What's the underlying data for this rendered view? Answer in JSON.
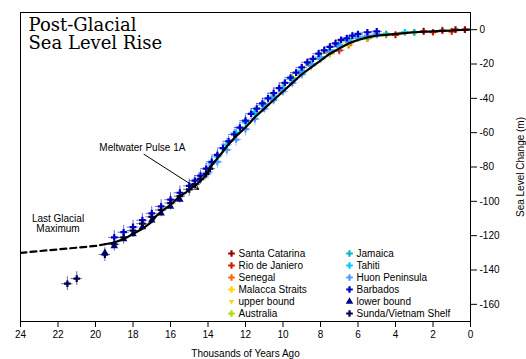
{
  "chart_data": {
    "type": "scatter",
    "title": "Post-Glacial\nSea Level Rise",
    "xlabel": "Thousands of Years Ago",
    "ylabel": "Sea Level Change (m)",
    "xlim": [
      24,
      0
    ],
    "ylim": [
      -170,
      10
    ],
    "xticks": [
      24,
      22,
      20,
      18,
      16,
      14,
      12,
      10,
      8,
      6,
      4,
      2,
      0
    ],
    "yticks": [
      0,
      -20,
      -40,
      -60,
      -80,
      -100,
      -120,
      -140,
      -160
    ],
    "grid": false,
    "legend": "lower right",
    "series": [
      {
        "name": "Santa Catarina",
        "color": "#990000",
        "marker": "plus",
        "x": [
          2.5,
          1.5,
          0.8,
          0.3
        ],
        "values": [
          -1,
          -0.5,
          0,
          0
        ],
        "xerr": [
          0.2,
          0.2,
          0.2,
          0.2
        ],
        "yerr": [
          2,
          2,
          1,
          1
        ]
      },
      {
        "name": "Rio de Janiero",
        "color": "#CC2200",
        "marker": "plus",
        "x": [
          7.0,
          5.5,
          4.0,
          2.0,
          1.0
        ],
        "values": [
          -12,
          -5,
          -3,
          -1.5,
          -1
        ],
        "xerr": [
          0.3,
          0.3,
          0.3,
          0.3,
          0.3
        ],
        "yerr": [
          3,
          2,
          2,
          1.5,
          1
        ]
      },
      {
        "name": "Senegal",
        "color": "#FF6600",
        "marker": "plus",
        "x": [
          8.5,
          7.5,
          6.5,
          5.5,
          4.5,
          3.0
        ],
        "values": [
          -20,
          -14,
          -9,
          -5,
          -3,
          -1.5
        ],
        "xerr": [
          0.3,
          0.3,
          0.3,
          0.3,
          0.3,
          0.3
        ],
        "yerr": [
          3,
          3,
          2,
          2,
          2,
          1.5
        ]
      },
      {
        "name": "Malacca Straits",
        "color": "#FFD700",
        "marker": "plus",
        "x": [
          9.5,
          9.0,
          8.5,
          8.0,
          7.5,
          7.0,
          6.5,
          6.0,
          5.5,
          4.5,
          3.5
        ],
        "values": [
          -28,
          -24,
          -21,
          -17,
          -13,
          -10,
          -7,
          -5,
          -4,
          -2.5,
          -1.5
        ],
        "xerr": [
          0.3,
          0.3,
          0.3,
          0.3,
          0.3,
          0.3,
          0.3,
          0.3,
          0.3,
          0.3,
          0.3
        ],
        "yerr": [
          3,
          3,
          3,
          3,
          2,
          2,
          2,
          2,
          2,
          1.5,
          1.5
        ]
      },
      {
        "name": "upper bound",
        "color": "#FFD700",
        "marker": "triangle-down",
        "x": [
          10.5,
          10.0,
          9.5,
          9.0,
          8.5,
          8.0,
          7.5,
          7.0,
          6.5,
          6.0
        ],
        "values": [
          -38,
          -33,
          -28,
          -23,
          -18,
          -14,
          -10,
          -7,
          -5,
          -3
        ],
        "xerr": [
          0,
          0,
          0,
          0,
          0,
          0,
          0,
          0,
          0,
          0
        ],
        "yerr": [
          0,
          0,
          0,
          0,
          0,
          0,
          0,
          0,
          0,
          0
        ]
      },
      {
        "name": "Australia",
        "color": "#AADD00",
        "marker": "plus",
        "x": [
          9.5,
          8.5,
          7.5,
          6.5,
          5.5
        ],
        "values": [
          -28,
          -21,
          -14,
          -8,
          -5
        ],
        "xerr": [
          0.3,
          0.3,
          0.3,
          0.3,
          0.3
        ],
        "yerr": [
          3,
          3,
          2,
          2,
          2
        ]
      },
      {
        "name": "Jamaica",
        "color": "#00BBBB",
        "marker": "plus",
        "x": [
          11.5,
          11.0,
          10.5,
          10.0,
          9.5,
          9.0,
          8.5,
          8.0,
          7.5,
          7.0,
          6.5,
          5.5,
          4.5,
          3.0
        ],
        "values": [
          -48,
          -44,
          -39,
          -34,
          -29,
          -24,
          -20,
          -16,
          -12,
          -9,
          -6,
          -4,
          -2.5,
          -1.5
        ],
        "xerr": [
          0.3,
          0.3,
          0.3,
          0.3,
          0.3,
          0.3,
          0.3,
          0.3,
          0.3,
          0.3,
          0.3,
          0.3,
          0.3,
          0.3
        ],
        "yerr": [
          3,
          3,
          3,
          3,
          3,
          3,
          3,
          2,
          2,
          2,
          2,
          2,
          1.5,
          1.5
        ]
      },
      {
        "name": "Tahiti",
        "color": "#00CCFF",
        "marker": "plus",
        "x": [
          13.8,
          13.5,
          13.0,
          12.5,
          12.0,
          11.5,
          11.0,
          10.5,
          10.0,
          9.5,
          9.0,
          8.5,
          8.0,
          7.5,
          7.0,
          6.5,
          6.0,
          5.0,
          3.5
        ],
        "values": [
          -78,
          -74,
          -67,
          -60,
          -54,
          -49,
          -44,
          -39,
          -34,
          -29,
          -24,
          -20,
          -16,
          -12,
          -9,
          -6,
          -4,
          -3,
          -1.5
        ],
        "xerr": [
          0.3,
          0.3,
          0.3,
          0.3,
          0.3,
          0.3,
          0.3,
          0.3,
          0.3,
          0.3,
          0.3,
          0.3,
          0.3,
          0.3,
          0.3,
          0.3,
          0.3,
          0.3,
          0.3
        ],
        "yerr": [
          4,
          4,
          4,
          4,
          4,
          3,
          3,
          3,
          3,
          3,
          3,
          3,
          2,
          2,
          2,
          2,
          2,
          2,
          1.5
        ]
      },
      {
        "name": "Huon Peninsula",
        "color": "#5599FF",
        "marker": "plus",
        "x": [
          14.5,
          14.0,
          13.5,
          13.0,
          12.5,
          12.0,
          11.5,
          11.0,
          10.5,
          10.0,
          9.5,
          9.0,
          8.5,
          8.0,
          7.5,
          7.0,
          6.5,
          6.0,
          5.5,
          5.0
        ],
        "values": [
          -87,
          -83,
          -77,
          -70,
          -64,
          -58,
          -52,
          -46,
          -41,
          -36,
          -31,
          -26,
          -21,
          -17,
          -13,
          -10,
          -7,
          -5,
          -3.5,
          -2.5
        ],
        "xerr": [
          0.3,
          0.3,
          0.3,
          0.3,
          0.3,
          0.3,
          0.3,
          0.3,
          0.3,
          0.3,
          0.3,
          0.3,
          0.3,
          0.3,
          0.3,
          0.3,
          0.3,
          0.3,
          0.3,
          0.3
        ],
        "yerr": [
          4,
          4,
          4,
          4,
          4,
          4,
          4,
          3,
          3,
          3,
          3,
          3,
          3,
          2,
          2,
          2,
          2,
          2,
          2,
          2
        ]
      },
      {
        "name": "Barbados",
        "color": "#0000CC",
        "marker": "plus",
        "x": [
          19.0,
          18.5,
          18.0,
          17.5,
          17.0,
          16.5,
          16.0,
          15.5,
          15.0,
          14.7,
          14.4,
          14.1,
          13.8,
          13.5,
          13.2,
          12.9,
          12.6,
          12.3,
          12.0,
          11.7,
          11.4,
          11.1,
          10.8,
          10.5,
          10.2,
          9.9,
          9.6,
          9.3,
          9.0,
          8.7,
          8.4,
          8.1,
          7.8,
          7.5,
          7.2,
          6.9,
          6.6,
          6.3,
          6.0,
          5.5,
          5.0
        ],
        "values": [
          -121,
          -118,
          -115,
          -111,
          -107,
          -103,
          -99,
          -95,
          -91,
          -88,
          -85,
          -81,
          -77,
          -73,
          -69,
          -65,
          -61,
          -57,
          -53,
          -49,
          -46,
          -43,
          -40,
          -37,
          -34,
          -31,
          -28,
          -25,
          -22,
          -19,
          -17,
          -14,
          -12,
          -10,
          -8,
          -6,
          -5,
          -3.5,
          -2.5,
          -1.5,
          -1
        ],
        "xerr": [
          0.3,
          0.3,
          0.3,
          0.3,
          0.3,
          0.3,
          0.3,
          0.3,
          0.3,
          0.3,
          0.3,
          0.3,
          0.3,
          0.3,
          0.3,
          0.3,
          0.3,
          0.3,
          0.3,
          0.3,
          0.3,
          0.3,
          0.3,
          0.3,
          0.3,
          0.3,
          0.3,
          0.3,
          0.3,
          0.3,
          0.3,
          0.3,
          0.3,
          0.3,
          0.3,
          0.3,
          0.3,
          0.3,
          0.3,
          0.3,
          0.3
        ],
        "yerr": [
          4,
          4,
          4,
          4,
          4,
          4,
          4,
          4,
          4,
          3,
          3,
          3,
          3,
          3,
          3,
          3,
          3,
          3,
          3,
          3,
          3,
          3,
          3,
          3,
          3,
          2,
          2,
          2,
          2,
          2,
          2,
          2,
          2,
          2,
          2,
          2,
          2,
          2,
          1.5,
          1.5,
          1.5
        ]
      },
      {
        "name": "lower bound",
        "color": "#000088",
        "marker": "triangle-up",
        "x": [
          19.5,
          19.0,
          18.5,
          18.0,
          17.5,
          17.0,
          16.5,
          16.0,
          15.5
        ],
        "values": [
          -130,
          -126,
          -122,
          -119,
          -115,
          -111,
          -107,
          -103,
          -99
        ],
        "xerr": [
          0,
          0,
          0,
          0,
          0,
          0,
          0,
          0,
          0
        ],
        "yerr": [
          0,
          0,
          0,
          0,
          0,
          0,
          0,
          0,
          0
        ]
      },
      {
        "name": "Sunda/Vietnam Shelf",
        "color": "#000055",
        "marker": "plus",
        "x": [
          21.5,
          21.0,
          19.5,
          19.0,
          18.5,
          18.0,
          17.5,
          17.0,
          16.5,
          16.0,
          15.5,
          15.0,
          14.7,
          14.4,
          14.1,
          13.9
        ],
        "values": [
          -148,
          -145,
          -131,
          -125,
          -121,
          -117,
          -113,
          -109,
          -105,
          -101,
          -97,
          -93,
          -90,
          -87,
          -84,
          -81
        ],
        "xerr": [
          0.3,
          0.3,
          0.3,
          0.3,
          0.3,
          0.3,
          0.3,
          0.3,
          0.3,
          0.3,
          0.3,
          0.3,
          0.3,
          0.3,
          0.3,
          0.3
        ],
        "yerr": [
          4,
          4,
          4,
          4,
          4,
          4,
          4,
          4,
          4,
          4,
          4,
          4,
          3,
          3,
          3,
          3
        ]
      },
      {
        "type": "line",
        "color": "#000000",
        "line_style": "solid",
        "x": [
          19.5,
          19.0,
          18.5,
          18.0,
          17.5,
          17.0,
          16.8,
          16.5,
          16.0,
          15.7,
          15.5,
          15.2,
          15.0,
          14.7,
          14.5,
          14.2,
          14.0,
          13.8,
          13.5,
          13.2,
          13.0,
          12.5,
          12.0,
          11.5,
          11.0,
          10.5,
          10.0,
          9.5,
          9.0,
          8.5,
          8.0,
          7.5,
          7.0,
          6.5,
          6.0,
          5.5,
          5.0,
          4.5,
          4.0,
          3.5,
          3.0,
          2.5,
          2.0,
          1.5,
          1.0,
          0.5,
          0.0
        ],
        "values": [
          -125,
          -124,
          -122,
          -119,
          -116,
          -112,
          -109,
          -106,
          -102,
          -99,
          -97,
          -95,
          -93,
          -91,
          -89,
          -86,
          -83,
          -79,
          -75,
          -71,
          -68,
          -62,
          -57,
          -51,
          -46,
          -41,
          -36,
          -31,
          -26,
          -22,
          -18,
          -14,
          -11,
          -8,
          -6,
          -4.5,
          -3.5,
          -3,
          -2.5,
          -2,
          -1.5,
          -1.2,
          -1,
          -0.7,
          -0.5,
          -0.2,
          0
        ]
      },
      {
        "type": "line",
        "color": "#000000",
        "line_style": "dashed",
        "x": [
          24,
          23.5,
          23,
          22.5,
          22,
          21.5,
          21,
          20.5,
          20,
          19.5
        ],
        "values": [
          -130,
          -129.5,
          -129,
          -128.5,
          -128,
          -127.5,
          -127,
          -126.5,
          -126,
          -125
        ]
      }
    ],
    "annotations": [
      {
        "text": "Meltwater Pulse 1A",
        "x": 14.5,
        "y": -93,
        "text_x": 17.5,
        "text_y": -72
      },
      {
        "text": "Last Glacial\nMaximum",
        "x": 22.0,
        "y": -113
      }
    ]
  }
}
